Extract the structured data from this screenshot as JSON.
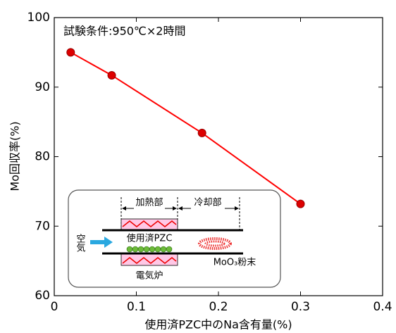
{
  "chart_data": {
    "type": "line",
    "annotation": "試験条件:950℃×2時間",
    "x_label": "使用済PZC中のNa含有量(%)",
    "y_label": "Mo回収率(%)",
    "x": [
      0.02,
      0.07,
      0.18,
      0.3
    ],
    "series": [
      {
        "color": "#ff0000",
        "marker_color": "#dd0000",
        "values": [
          95,
          91.7,
          83.4,
          73.2
        ]
      }
    ],
    "xlim": [
      0,
      0.4
    ],
    "xticks": [
      0,
      0.1,
      0.2,
      0.3,
      0.4
    ],
    "ylim": [
      60,
      100
    ],
    "yticks": [
      60,
      70,
      80,
      90,
      100
    ],
    "grid": false
  },
  "inset": {
    "heating_zone": "加熱部",
    "cooling_zone": "冷却部",
    "air": "空気",
    "sample": "使用済PZC",
    "powder": "MoO₃粉末",
    "furnace": "電気炉"
  }
}
